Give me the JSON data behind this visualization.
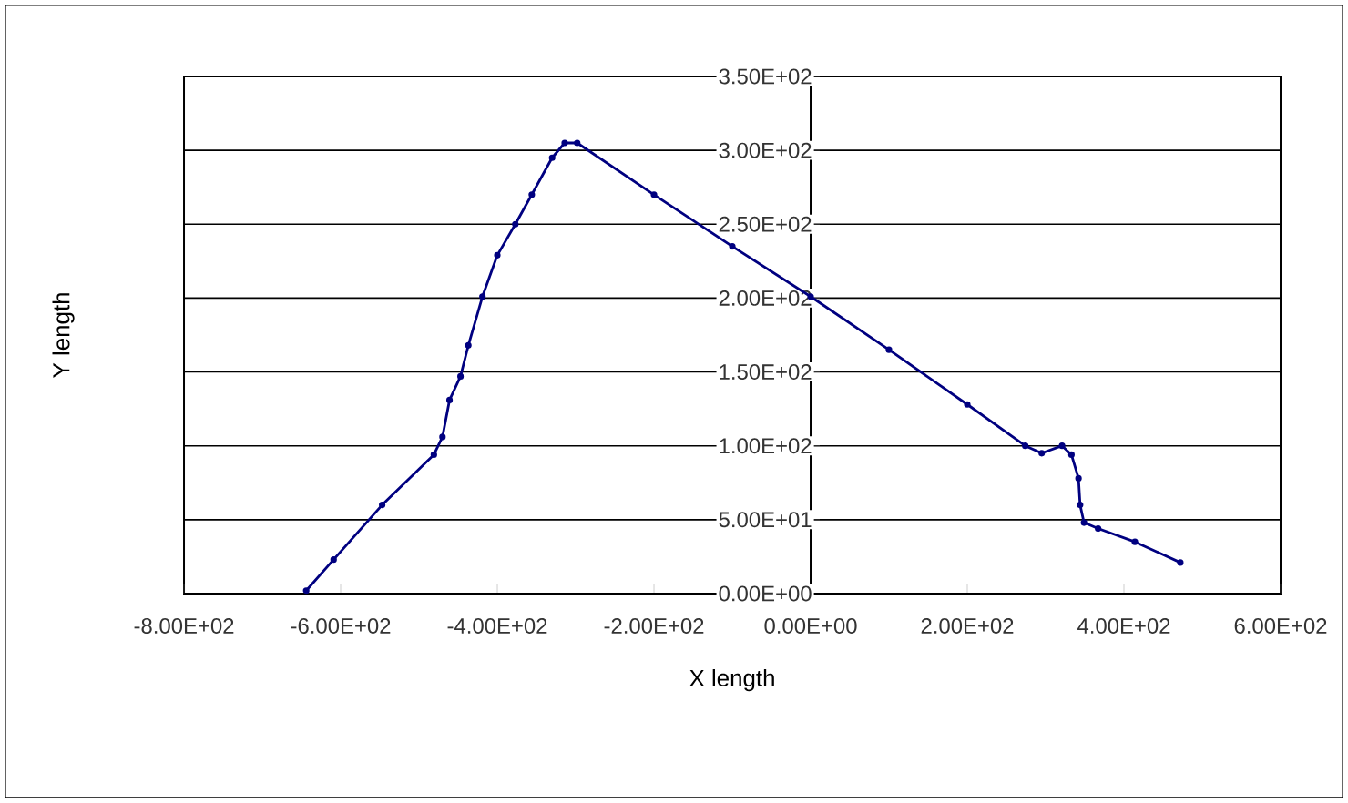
{
  "chart_data": {
    "type": "line",
    "xlabel": "X length",
    "ylabel": "Y length",
    "xlim": [
      -800,
      600
    ],
    "ylim": [
      0,
      350
    ],
    "xticks": [
      {
        "value": -800,
        "label": "-8.00E+02"
      },
      {
        "value": -600,
        "label": "-6.00E+02"
      },
      {
        "value": -400,
        "label": "-4.00E+02"
      },
      {
        "value": -200,
        "label": "-2.00E+02"
      },
      {
        "value": 0,
        "label": "0.00E+00"
      },
      {
        "value": 200,
        "label": "2.00E+02"
      },
      {
        "value": 400,
        "label": "4.00E+02"
      },
      {
        "value": 600,
        "label": "6.00E+02"
      }
    ],
    "yticks": [
      {
        "value": 0,
        "label": "0.00E+00"
      },
      {
        "value": 50,
        "label": "5.00E+01"
      },
      {
        "value": 100,
        "label": "1.00E+02"
      },
      {
        "value": 150,
        "label": "1.50E+02"
      },
      {
        "value": 200,
        "label": "2.00E+02"
      },
      {
        "value": 250,
        "label": "2.50E+02"
      },
      {
        "value": 300,
        "label": "3.00E+02"
      },
      {
        "value": 350,
        "label": "3.50E+02"
      }
    ],
    "grid": "y",
    "marker": "circle",
    "line_style": "solid",
    "series": [
      {
        "color": "#000080",
        "x": [
          -644,
          -609,
          -547,
          -481,
          -470,
          -461,
          -447,
          -437,
          -419,
          -400,
          -377,
          -356,
          -330,
          -314,
          -298,
          -200,
          -100,
          0,
          100,
          200,
          274,
          295,
          321,
          333,
          342,
          344,
          349,
          367,
          414,
          472
        ],
        "values": [
          2,
          23,
          60,
          94,
          106,
          131,
          147,
          168,
          201,
          229,
          250,
          270,
          295,
          305,
          305,
          270,
          235,
          201,
          165,
          128,
          100,
          95,
          100,
          94,
          78,
          60,
          48,
          44,
          35,
          21
        ]
      }
    ]
  }
}
